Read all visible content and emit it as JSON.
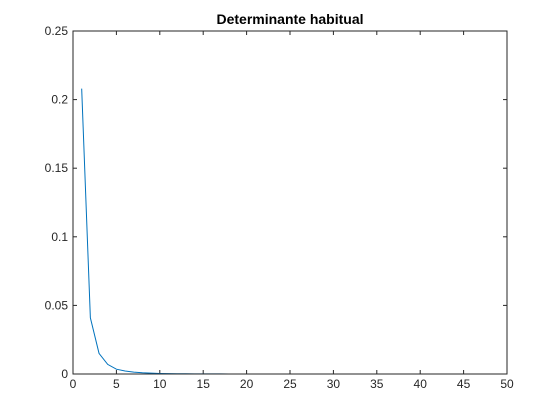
{
  "chart_data": {
    "type": "line",
    "title": "Determinante habitual",
    "xlabel": "",
    "ylabel": "",
    "xlim": [
      0,
      50
    ],
    "ylim": [
      0,
      0.25
    ],
    "x_ticks": [
      0,
      5,
      10,
      15,
      20,
      25,
      30,
      35,
      40,
      45,
      50
    ],
    "x_tick_labels": [
      "0",
      "5",
      "10",
      "15",
      "20",
      "25",
      "30",
      "35",
      "40",
      "45",
      "50"
    ],
    "y_ticks": [
      0,
      0.05,
      0.1,
      0.15,
      0.2,
      0.25
    ],
    "y_tick_labels": [
      "0",
      "0.05",
      "0.1",
      "0.15",
      "0.2",
      "0.25"
    ],
    "grid": false,
    "legend": "none",
    "series": [
      {
        "color": "#0072BD",
        "x": [
          1,
          2,
          3,
          4,
          5,
          6,
          7,
          8,
          9,
          10,
          11,
          12,
          13,
          14,
          15,
          16,
          17,
          18,
          19,
          20,
          21,
          22,
          23,
          24,
          25,
          26,
          27,
          28,
          29,
          30,
          31,
          32,
          33,
          34,
          35,
          36,
          37,
          38,
          39,
          40,
          41,
          42,
          43,
          44,
          45,
          46,
          47,
          48,
          49,
          50
        ],
        "y": [
          0.208,
          0.041,
          0.015,
          0.007,
          0.0035,
          0.0022,
          0.0014,
          0.0009,
          0.0006,
          0.0004,
          0.0003,
          0.0002,
          0.00015,
          0.0001,
          8e-05,
          6e-05,
          5e-05,
          4e-05,
          3e-05,
          2e-05,
          2e-05,
          1e-05,
          1e-05,
          1e-05,
          1e-05,
          0,
          0,
          0,
          0,
          0,
          0,
          0,
          0,
          0,
          0,
          0,
          0,
          0,
          0,
          0,
          0,
          0,
          0,
          0,
          0,
          0,
          0,
          0,
          0,
          0
        ]
      }
    ]
  }
}
